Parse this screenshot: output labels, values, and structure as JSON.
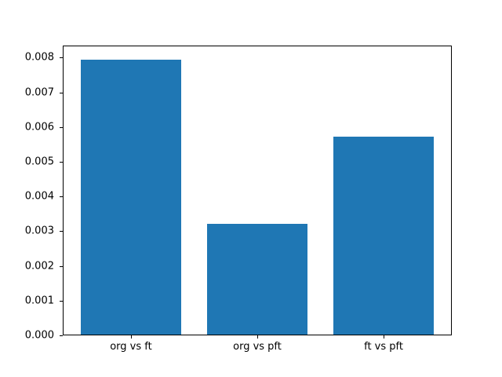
{
  "figure": {
    "background_color": "#ffffff",
    "text_color": "#000000",
    "spine_color": "#000000"
  },
  "chart_data": {
    "type": "bar",
    "title": "",
    "xlabel": "",
    "ylabel": "",
    "categories": [
      "org vs ft",
      "org vs pft",
      "ft vs pft"
    ],
    "values": [
      0.00795,
      0.00321,
      0.00572
    ],
    "bar_color": "#1f77b4",
    "bar_width_fraction": 0.8,
    "xlim": [
      -0.54,
      2.54
    ],
    "ylim": [
      0,
      0.00835
    ],
    "yticks": [
      0,
      0.001,
      0.002,
      0.003,
      0.004,
      0.005,
      0.006,
      0.007,
      0.008
    ],
    "ytick_labels": [
      "0.000",
      "0.001",
      "0.002",
      "0.003",
      "0.004",
      "0.005",
      "0.006",
      "0.007",
      "0.008"
    ],
    "grid": false,
    "legend": null
  }
}
